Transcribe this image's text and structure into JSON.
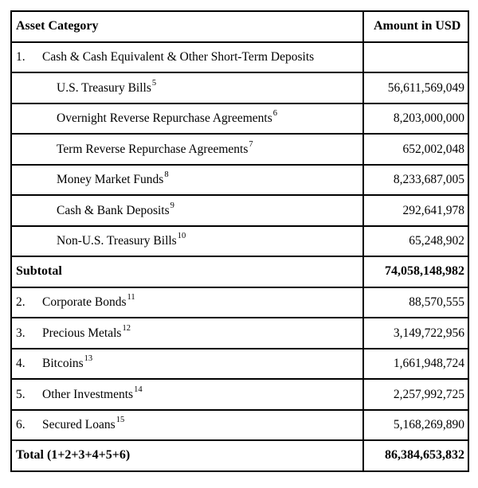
{
  "page": {
    "background_color": "#ffffff",
    "text_color": "#000000",
    "border_color": "#000000"
  },
  "table": {
    "header": {
      "category": "Asset Category",
      "amount": "Amount in USD"
    },
    "rows": [
      {
        "num": "1.",
        "label": "Cash & Cash Equivalent & Other Short-Term Deposits",
        "amount": ""
      },
      {
        "label": "U.S. Treasury Bills",
        "footnote": "5",
        "amount": "56,611,569,049"
      },
      {
        "label": "Overnight Reverse Repurchase Agreements",
        "footnote": "6",
        "amount": "8,203,000,000"
      },
      {
        "label": "Term Reverse Repurchase Agreements",
        "footnote": "7",
        "amount": "652,002,048"
      },
      {
        "label": "Money Market Funds",
        "footnote": "8",
        "amount": "8,233,687,005"
      },
      {
        "label": "Cash & Bank Deposits",
        "footnote": "9",
        "amount": "292,641,978"
      },
      {
        "label": "Non-U.S. Treasury Bills",
        "footnote": "10",
        "amount": "65,248,902"
      },
      {
        "label": "Subtotal",
        "amount": "74,058,148,982"
      },
      {
        "num": "2.",
        "label": "Corporate Bonds",
        "footnote": "11",
        "amount": "88,570,555"
      },
      {
        "num": "3.",
        "label": "Precious Metals",
        "footnote": "12",
        "amount": "3,149,722,956"
      },
      {
        "num": "4.",
        "label": "Bitcoins",
        "footnote": "13",
        "amount": "1,661,948,724"
      },
      {
        "num": "5.",
        "label": "Other Investments",
        "footnote": "14",
        "amount": "2,257,992,725"
      },
      {
        "num": "6.",
        "label": "Secured Loans",
        "footnote": "15",
        "amount": "5,168,269,890"
      },
      {
        "label": "Total (1+2+3+4+5+6)",
        "amount": "86,384,653,832"
      }
    ]
  }
}
